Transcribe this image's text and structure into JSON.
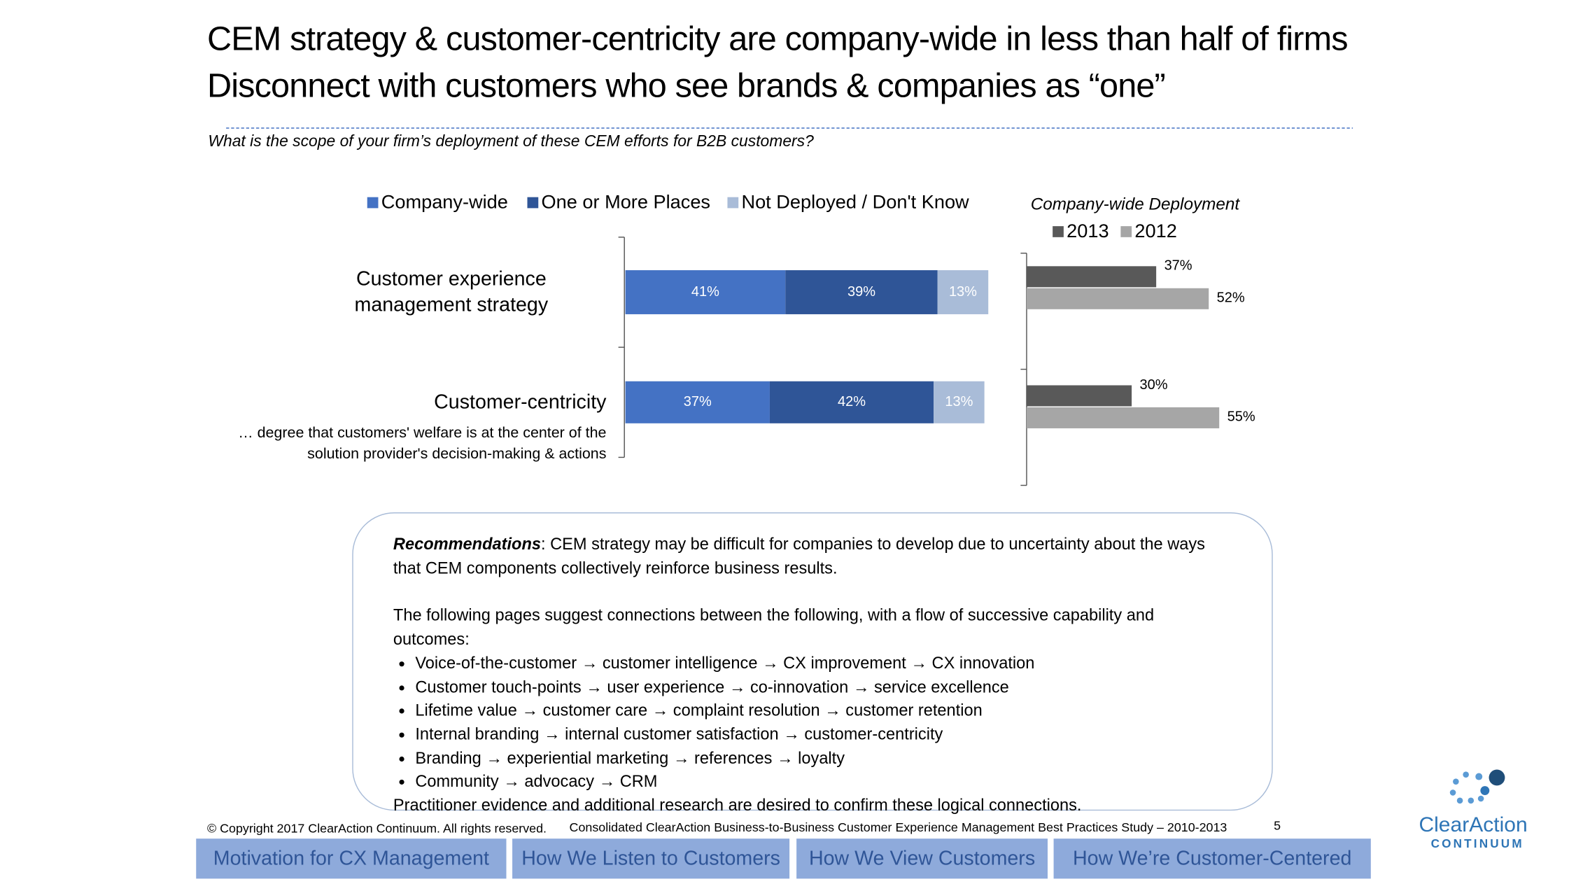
{
  "header": {
    "title_lines": [
      "CEM strategy & customer-centricity are company-wide in less than half of firms",
      "Disconnect with customers who see brands & companies as “one”"
    ],
    "question": "What is the scope of your firm’s deployment of these CEM efforts for B2B customers?"
  },
  "chart_data": [
    {
      "type": "bar",
      "orientation": "horizontal",
      "stacked": true,
      "categories": [
        "Customer experience management strategy",
        "Customer-centricity"
      ],
      "annotations": [
        "… degree that customers' welfare is at the center of the solution provider's decision-making & actions"
      ],
      "series": [
        {
          "name": "Company-wide",
          "color": "#4472c4",
          "values": [
            41,
            37
          ],
          "value_labels": [
            "41%",
            "37%"
          ]
        },
        {
          "name": "One or More Places",
          "color": "#2f5597",
          "values": [
            39,
            42
          ],
          "value_labels": [
            "39%",
            "42%"
          ]
        },
        {
          "name": "Not Deployed / Don't Know",
          "color": "#a9bcd8",
          "values": [
            13,
            13
          ],
          "value_labels": [
            "13%",
            "13%"
          ]
        }
      ]
    },
    {
      "type": "bar",
      "orientation": "horizontal",
      "stacked": false,
      "title": "Company-wide Deployment",
      "categories": [
        null,
        null
      ],
      "series": [
        {
          "name": "2013",
          "color": "#595959",
          "values": [
            37,
            30
          ],
          "value_labels": [
            "37%",
            "30%"
          ]
        },
        {
          "name": "2012",
          "color": "#a6a6a6",
          "values": [
            52,
            55
          ],
          "value_labels": [
            "52%",
            "55%"
          ]
        }
      ]
    }
  ],
  "recommendations": {
    "label": "Recommendations",
    "intro": ": CEM strategy may be difficult for companies to develop due to uncertainty about the ways that CEM components collectively reinforce business results.",
    "lead": "The following pages suggest connections between the following, with a flow of successive capability and outcomes:",
    "bullets": [
      "Voice-of-the-customer → customer intelligence → CX improvement → CX innovation",
      "Customer touch-points → user experience → co-innovation → service excellence",
      "Lifetime value → customer care → complaint resolution → customer retention",
      "Internal branding → internal customer satisfaction → customer-centricity",
      "Branding → experiential marketing → references → loyalty",
      "Community → advocacy → CRM"
    ],
    "closing": "Practitioner evidence and additional research are desired to confirm these logical connections."
  },
  "footer": {
    "copyright": "© Copyright 2017 ClearAction Continuum. All rights reserved.",
    "study": "Consolidated ClearAction Business-to-Business Customer Experience Management Best Practices Study – 2010-2013",
    "page": "5"
  },
  "nav": [
    "Motivation for CX Management",
    "How We Listen to Customers",
    "How We View Customers",
    "How We’re Customer-Centered"
  ],
  "logo": {
    "name": "ClearAction",
    "tagline": "CONTINUUM"
  }
}
